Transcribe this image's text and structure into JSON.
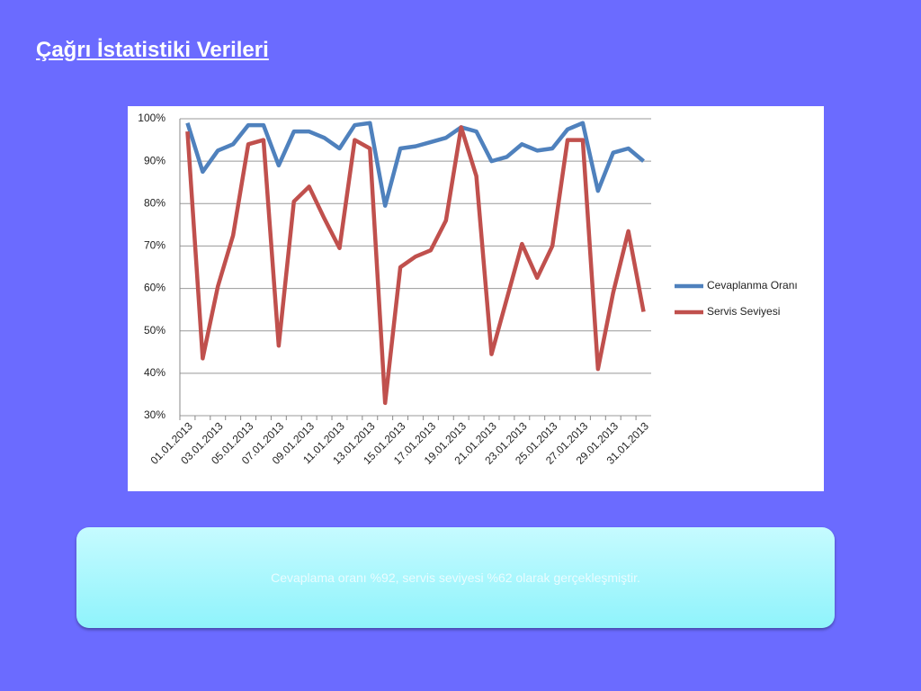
{
  "title": "Çağrı İstatistiki Verileri",
  "chart_data": {
    "type": "line",
    "categories": [
      "01.01.2013",
      null,
      "03.01.2013",
      null,
      "05.01.2013",
      null,
      "07.01.2013",
      null,
      "09.01.2013",
      null,
      "11.01.2013",
      null,
      "13.01.2013",
      null,
      "15.01.2013",
      null,
      "17.01.2013",
      null,
      "19.01.2013",
      null,
      "21.01.2013",
      null,
      "23.01.2013",
      null,
      "25.01.2013",
      null,
      "27.01.2013",
      null,
      "29.01.2013",
      null,
      "31.01.2013"
    ],
    "series": [
      {
        "name": "Cevaplanma Oranı",
        "color": "#4f81bd",
        "values": [
          99,
          87.5,
          92.5,
          94,
          98.5,
          98.5,
          89,
          97,
          97,
          95.5,
          93,
          98.5,
          99,
          79.5,
          93,
          93.5,
          94.5,
          95.5,
          98,
          97,
          90,
          91,
          94,
          92.5,
          93,
          97.5,
          99,
          83,
          92,
          93,
          90
        ]
      },
      {
        "name": "Servis Seviyesi",
        "color": "#c0504d",
        "values": [
          97,
          43.5,
          60.5,
          72.5,
          94,
          95,
          46.5,
          80.5,
          84,
          76.5,
          69.5,
          95,
          93,
          33,
          65,
          67.5,
          69,
          76,
          98,
          86.5,
          44.5,
          57.5,
          70.5,
          62.5,
          70,
          95,
          95,
          41,
          59,
          73.5,
          54.5
        ]
      }
    ],
    "ylim": [
      30,
      100
    ],
    "yticks": [
      {
        "value": 30,
        "label": "30%"
      },
      {
        "value": 40,
        "label": "40%"
      },
      {
        "value": 50,
        "label": "50%"
      },
      {
        "value": 60,
        "label": "60%"
      },
      {
        "value": 70,
        "label": "70%"
      },
      {
        "value": 80,
        "label": "80%"
      },
      {
        "value": 90,
        "label": "90%"
      },
      {
        "value": 100,
        "label": "100%"
      }
    ],
    "grid": true,
    "legend": "right"
  },
  "text_box": "Cevaplama oranı %92, servis seviyesi %62 olarak gerçekleşmiştir."
}
